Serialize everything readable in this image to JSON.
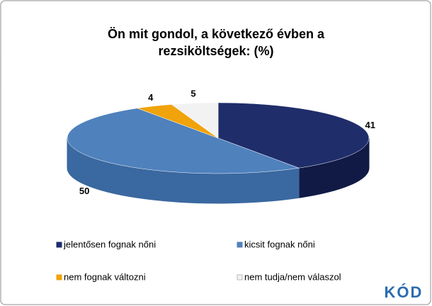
{
  "chart_data": {
    "type": "pie3d",
    "title": "Ön mit gondol, a következő évben a rezsiköltségek: (%)",
    "categories": [
      "jelentősen fognak nőni",
      "kicsit fognak nőni",
      "nem fognak változni",
      "nem tudja/nem válaszol"
    ],
    "values": [
      41,
      50,
      4,
      5
    ],
    "colors": [
      "#1f2d6b",
      "#4f81bd",
      "#f0a30a",
      "#f2f2f2"
    ],
    "side_colors": [
      "#111a45",
      "#3a68a0",
      "#c07e05",
      "#cfcfcf"
    ],
    "legend": "bottom"
  },
  "logo": "KÓD"
}
